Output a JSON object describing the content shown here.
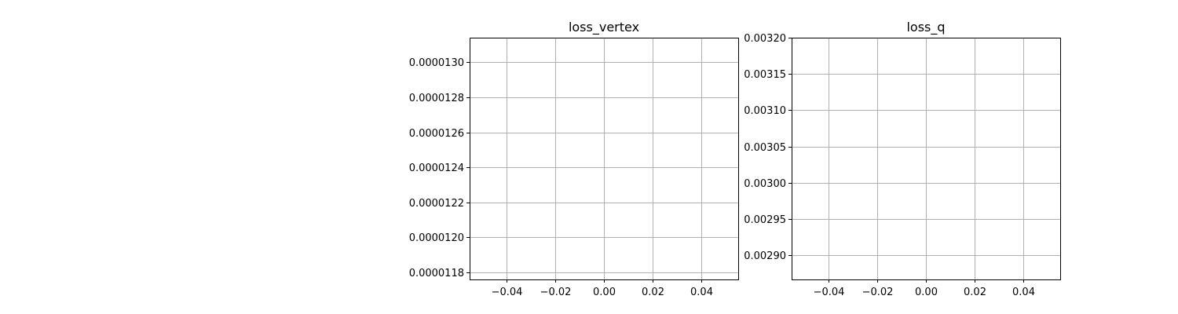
{
  "chart_data": [
    {
      "type": "line",
      "title": "loss_vertex",
      "xlabel": "",
      "ylabel": "",
      "series": [],
      "xlim": [
        -0.055,
        0.055
      ],
      "ylim": [
        1.176e-05,
        1.314e-05
      ],
      "xticks": [
        -0.04,
        -0.02,
        0.0,
        0.02,
        0.04
      ],
      "xtick_labels": [
        "−0.04",
        "−0.02",
        "0.00",
        "0.02",
        "0.04"
      ],
      "yticks": [
        1.18e-05,
        1.2e-05,
        1.22e-05,
        1.24e-05,
        1.26e-05,
        1.28e-05,
        1.3e-05
      ],
      "ytick_labels": [
        "0.0000118",
        "0.0000120",
        "0.0000122",
        "0.0000124",
        "0.0000126",
        "0.0000128",
        "0.0000130"
      ],
      "grid": true
    },
    {
      "type": "line",
      "title": "loss_q",
      "xlabel": "",
      "ylabel": "",
      "series": [],
      "xlim": [
        -0.055,
        0.055
      ],
      "ylim": [
        0.002867,
        0.0032
      ],
      "xticks": [
        -0.04,
        -0.02,
        0.0,
        0.02,
        0.04
      ],
      "xtick_labels": [
        "−0.04",
        "−0.02",
        "0.00",
        "0.02",
        "0.04"
      ],
      "yticks": [
        0.0029,
        0.00295,
        0.003,
        0.00305,
        0.0031,
        0.00315,
        0.0032
      ],
      "ytick_labels": [
        "0.00290",
        "0.00295",
        "0.00300",
        "0.00305",
        "0.00310",
        "0.00315",
        "0.00320"
      ],
      "grid": true
    }
  ]
}
